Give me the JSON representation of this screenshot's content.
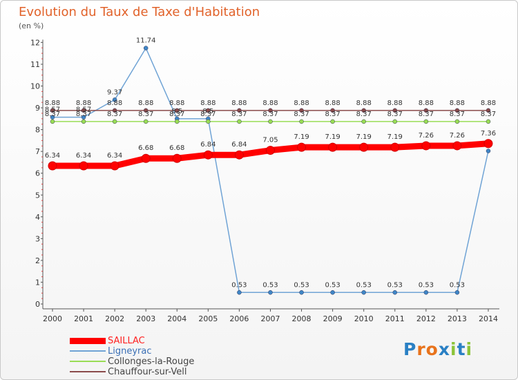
{
  "header": {
    "title": "Evolution du Taux de Taxe d'Habitation",
    "unit": "(en %)"
  },
  "logo": {
    "text": "Proxiti",
    "letters": [
      "P",
      "r",
      "o",
      "x",
      "i",
      "t",
      "i"
    ],
    "colors": [
      "#2a80c4",
      "#e8731c",
      "#e8731c",
      "#2a80c4",
      "#8cc43a",
      "#2a80c4",
      "#8cc43a"
    ]
  },
  "chart_data": {
    "type": "line",
    "title": "Evolution du Taux de Taxe d'Habitation",
    "ylabel": "(en %)",
    "xlabel": "",
    "x": [
      "2000",
      "2001",
      "2002",
      "2003",
      "2004",
      "2005",
      "2006",
      "2007",
      "2008",
      "2009",
      "2010",
      "2011",
      "2012",
      "2013",
      "2014"
    ],
    "yticks": [
      "0",
      "1",
      "2",
      "3",
      "4",
      "5",
      "6",
      "7",
      "8",
      "9",
      "10",
      "11",
      "12"
    ],
    "ylim": [
      0,
      12
    ],
    "grid": false,
    "legend": "bottom-left",
    "series": [
      {
        "name": "SAILLAC",
        "color": "#ff0000",
        "values": [
          6.34,
          6.34,
          6.34,
          6.68,
          6.68,
          6.84,
          6.84,
          7.05,
          7.19,
          7.19,
          7.19,
          7.19,
          7.26,
          7.26,
          7.36
        ],
        "labels": [
          "6.34",
          "6.34",
          "6.34",
          "6.68",
          "6.68",
          "6.84",
          "6.84",
          "7.05",
          "7.19",
          "7.19",
          "7.19",
          "7.19",
          "7.26",
          "7.26",
          "7.36"
        ]
      },
      {
        "name": "Ligneyrac",
        "color": "#6fa3d5",
        "values": [
          8.57,
          8.57,
          9.37,
          11.74,
          8.5,
          8.5,
          0.53,
          0.53,
          0.53,
          0.53,
          0.53,
          0.53,
          0.53,
          0.53,
          7.02
        ],
        "labels": [
          "8.57",
          "8.57",
          "9.37",
          "11.74",
          "8.5",
          "8.5",
          "0.53",
          "0.53",
          "0.53",
          "0.53",
          "0.53",
          "0.53",
          "0.53",
          "0.53",
          ""
        ]
      },
      {
        "name": "Collonges-la-Rouge",
        "color": "#99dd55",
        "values": [
          8.37,
          8.37,
          8.37,
          8.37,
          8.37,
          8.37,
          8.37,
          8.37,
          8.37,
          8.37,
          8.37,
          8.37,
          8.37,
          8.37,
          8.37
        ],
        "labels": [
          "8.37",
          "8.37",
          "8.37",
          "8.37",
          "8.37",
          "8.37",
          "8.37",
          "8.37",
          "8.37",
          "8.37",
          "8.37",
          "8.37",
          "8.37",
          "8.37",
          "8.37"
        ]
      },
      {
        "name": "Chauffour-sur-Vell",
        "color": "#8a4a4a",
        "values": [
          8.88,
          8.88,
          8.88,
          8.88,
          8.88,
          8.88,
          8.88,
          8.88,
          8.88,
          8.88,
          8.88,
          8.88,
          8.88,
          8.88,
          8.88
        ],
        "labels": [
          "8.88",
          "8.88",
          "8.88",
          "8.88",
          "8.88",
          "8.88",
          "8.88",
          "8.88",
          "8.88",
          "8.88",
          "8.88",
          "8.88",
          "8.88",
          "8.88",
          "8.88"
        ]
      }
    ]
  }
}
